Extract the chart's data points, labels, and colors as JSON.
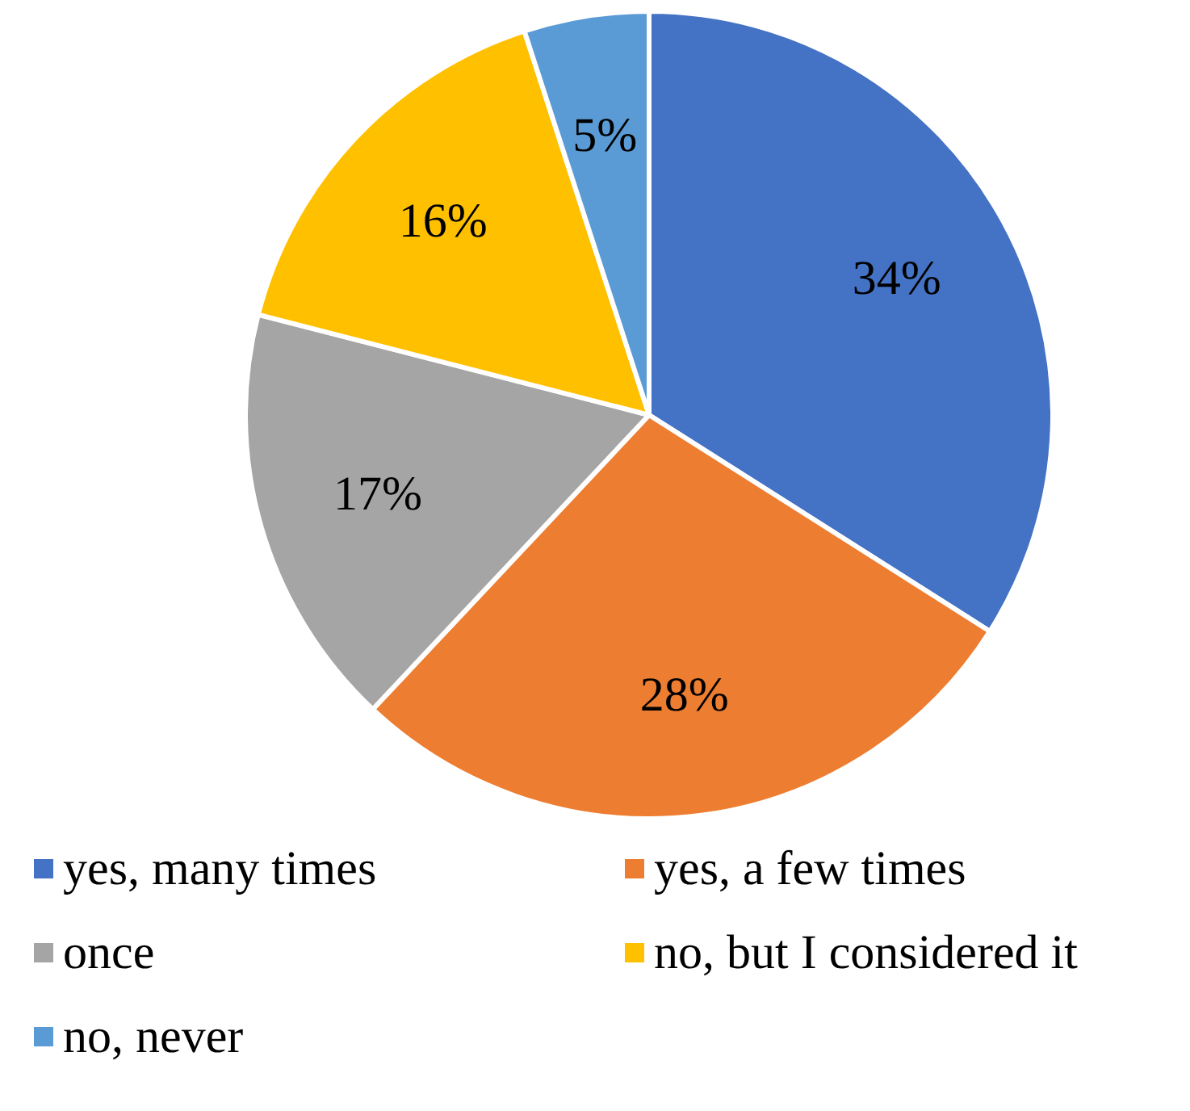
{
  "chart_data": {
    "type": "pie",
    "categories": [
      "yes, many times",
      "yes, a few times",
      "once",
      "no, but I considered it",
      "no, never"
    ],
    "values": [
      34,
      28,
      17,
      16,
      5
    ],
    "value_labels": [
      "34%",
      "28%",
      "17%",
      "16%",
      "5%"
    ],
    "colors": [
      "#4472c4",
      "#ed7d31",
      "#a5a5a5",
      "#ffc000",
      "#5b9bd5"
    ],
    "legend": "bottom"
  }
}
